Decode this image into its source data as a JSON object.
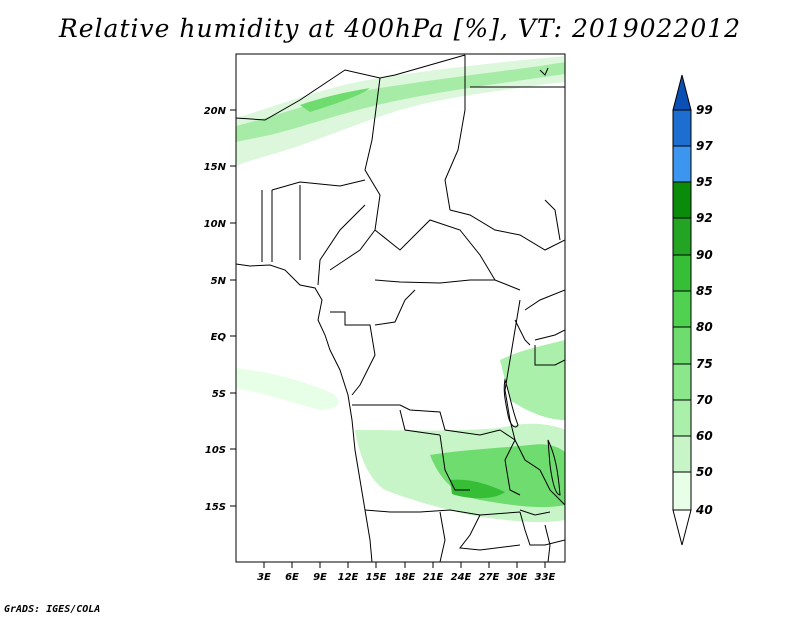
{
  "title": "Relative humidity at 400hPa [%], VT: 2019022012",
  "footer": "GrADS: IGES/COLA",
  "map": {
    "lon_range": [
      0,
      35
    ],
    "lat_range": [
      -20,
      24
    ],
    "lon_ticks": [
      "3E",
      "6E",
      "9E",
      "12E",
      "15E",
      "18E",
      "21E",
      "24E",
      "27E",
      "30E",
      "33E"
    ],
    "lat_ticks": [
      "20N",
      "15N",
      "10N",
      "5N",
      "EQ",
      "5S",
      "10S",
      "15S"
    ]
  },
  "colorbar": {
    "levels": [
      "40",
      "50",
      "60",
      "70",
      "75",
      "80",
      "85",
      "90",
      "92",
      "95",
      "97",
      "99"
    ],
    "colors": [
      "#ffffff",
      "#e6ffe6",
      "#c8f5c8",
      "#aaf0aa",
      "#8ce68c",
      "#6edc6e",
      "#50d250",
      "#37be37",
      "#23a523",
      "#0a8c0a",
      "#3c96f0",
      "#1e6ed2",
      "#0a50b4"
    ]
  }
}
